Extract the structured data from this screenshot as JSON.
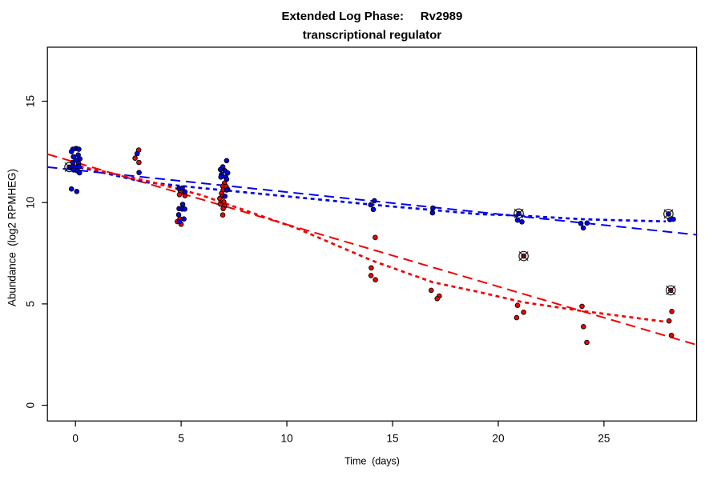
{
  "chart_data": {
    "type": "scatter",
    "title": "Extended Log Phase:     Rv2989",
    "subtitle": "transcriptional regulator",
    "xlabel": "Time  (days)",
    "ylabel": "Abundance  (log2 RPMHEG)",
    "x_ticks": [
      0,
      5,
      10,
      15,
      20,
      25
    ],
    "y_ticks": [
      0,
      5,
      10,
      15
    ],
    "xlim": [
      -1.326,
      29.384
    ],
    "ylim": [
      -0.775,
      17.665
    ],
    "grid": false,
    "legend": "none",
    "colors": {
      "blue_series": "#0000F2",
      "red_series": "#F20000",
      "marker_border": "#000000",
      "flag_marker": "#1A1A1A",
      "axis": "#000000"
    },
    "series": [
      {
        "name": "red",
        "marker": "filled-circle",
        "color_key": "red_series",
        "points": [
          [
            2.99,
            12.59
          ],
          [
            2.82,
            12.19
          ],
          [
            3.0,
            11.98
          ],
          [
            4.97,
            10.55
          ],
          [
            4.92,
            10.39
          ],
          [
            5.18,
            10.34
          ],
          [
            4.94,
            9.19
          ],
          [
            4.82,
            9.06
          ],
          [
            5.0,
            8.93
          ],
          [
            7.05,
            10.96
          ],
          [
            6.97,
            10.81
          ],
          [
            7.13,
            10.79
          ],
          [
            6.99,
            10.62
          ],
          [
            6.91,
            10.45
          ],
          [
            6.97,
            10.31
          ],
          [
            6.83,
            10.2
          ],
          [
            7.02,
            10.03
          ],
          [
            6.86,
            9.92
          ],
          [
            7.05,
            9.83
          ],
          [
            6.99,
            9.7
          ],
          [
            6.97,
            9.39
          ],
          [
            14.18,
            8.28
          ],
          [
            13.99,
            6.78
          ],
          [
            13.98,
            6.4
          ],
          [
            14.19,
            6.19
          ],
          [
            16.83,
            5.67
          ],
          [
            17.21,
            5.39
          ],
          [
            17.11,
            5.26
          ],
          [
            20.91,
            4.93
          ],
          [
            21.2,
            4.59
          ],
          [
            20.87,
            4.32
          ],
          [
            23.96,
            4.88
          ],
          [
            24.03,
            3.88
          ],
          [
            24.19,
            3.1
          ],
          [
            28.21,
            4.63
          ],
          [
            28.08,
            4.16
          ],
          [
            28.19,
            3.45
          ]
        ]
      },
      {
        "name": "blue",
        "marker": "filled-circle",
        "color_key": "blue_series",
        "points": [
          [
            0.03,
            12.67
          ],
          [
            -0.12,
            12.63
          ],
          [
            0.16,
            12.63
          ],
          [
            -0.19,
            12.52
          ],
          [
            0.13,
            12.35
          ],
          [
            -0.1,
            12.26
          ],
          [
            0.21,
            12.16
          ],
          [
            0.02,
            12.1
          ],
          [
            -0.12,
            11.98
          ],
          [
            0.15,
            11.93
          ],
          [
            -0.16,
            11.77
          ],
          [
            0.17,
            11.77
          ],
          [
            -0.01,
            11.75
          ],
          [
            -0.08,
            11.61
          ],
          [
            0.08,
            11.57
          ],
          [
            0.19,
            11.47
          ],
          [
            -0.19,
            10.67
          ],
          [
            0.06,
            10.55
          ],
          [
            2.92,
            12.41
          ],
          [
            3.01,
            11.48
          ],
          [
            4.9,
            10.69
          ],
          [
            5.05,
            10.72
          ],
          [
            5.18,
            10.53
          ],
          [
            5.07,
            9.91
          ],
          [
            4.9,
            9.7
          ],
          [
            5.05,
            9.68
          ],
          [
            5.17,
            9.68
          ],
          [
            4.88,
            9.4
          ],
          [
            5.13,
            9.19
          ],
          [
            4.92,
            9.06
          ],
          [
            7.15,
            12.07
          ],
          [
            6.97,
            11.76
          ],
          [
            6.86,
            11.63
          ],
          [
            7.07,
            11.57
          ],
          [
            7.2,
            11.46
          ],
          [
            6.91,
            11.38
          ],
          [
            6.88,
            11.26
          ],
          [
            7.1,
            11.26
          ],
          [
            7.15,
            11.15
          ],
          [
            7.2,
            10.65
          ],
          [
            7.15,
            10.62
          ],
          [
            7.07,
            10.31
          ],
          [
            14.14,
            10.09
          ],
          [
            13.97,
            9.89
          ],
          [
            14.09,
            9.66
          ],
          [
            16.91,
            9.73
          ],
          [
            16.89,
            9.49
          ],
          [
            20.91,
            9.13
          ],
          [
            21.12,
            9.05
          ],
          [
            23.91,
            8.97
          ],
          [
            24.2,
            8.99
          ],
          [
            24.02,
            8.75
          ],
          [
            28.12,
            9.16
          ],
          [
            28.28,
            9.18
          ]
        ]
      }
    ],
    "flagged_points": [
      {
        "series": "blue",
        "x": -0.29,
        "y": 11.75
      },
      {
        "series": "blue",
        "x": 20.97,
        "y": 9.46
      },
      {
        "series": "red",
        "x": 21.2,
        "y": 7.36
      },
      {
        "series": "blue",
        "x": 28.05,
        "y": 9.44
      },
      {
        "series": "red",
        "x": 28.16,
        "y": 5.67
      }
    ],
    "trend_lines": [
      {
        "name": "blue-dashed-fit",
        "series": "blue",
        "style": "dashed",
        "points": [
          [
            -1.326,
            11.75
          ],
          [
            29.384,
            8.41
          ]
        ]
      },
      {
        "name": "red-dashed-fit",
        "series": "red",
        "style": "dashed",
        "points": [
          [
            -1.326,
            12.39
          ],
          [
            29.384,
            2.98
          ]
        ]
      },
      {
        "name": "blue-dotted-fit",
        "series": "blue",
        "style": "dotted",
        "points": [
          [
            -0.15,
            11.82
          ],
          [
            3.26,
            11.01
          ],
          [
            5.91,
            10.72
          ],
          [
            10.45,
            10.26
          ],
          [
            14.62,
            9.84
          ],
          [
            16.4,
            9.68
          ],
          [
            19.05,
            9.43
          ],
          [
            20.98,
            9.36
          ],
          [
            23.98,
            9.18
          ],
          [
            25.23,
            9.14
          ],
          [
            27.92,
            9.07
          ]
        ]
      },
      {
        "name": "red-dotted-fit",
        "series": "red",
        "style": "dotted",
        "points": [
          [
            -0.15,
            11.86
          ],
          [
            3.26,
            11.1
          ],
          [
            5.91,
            10.38
          ],
          [
            10.45,
            8.74
          ],
          [
            14.05,
            7.13
          ],
          [
            16.9,
            6.07
          ],
          [
            19.07,
            5.59
          ],
          [
            21.14,
            5.09
          ],
          [
            23.98,
            4.65
          ],
          [
            27.97,
            4.11
          ]
        ]
      }
    ]
  }
}
